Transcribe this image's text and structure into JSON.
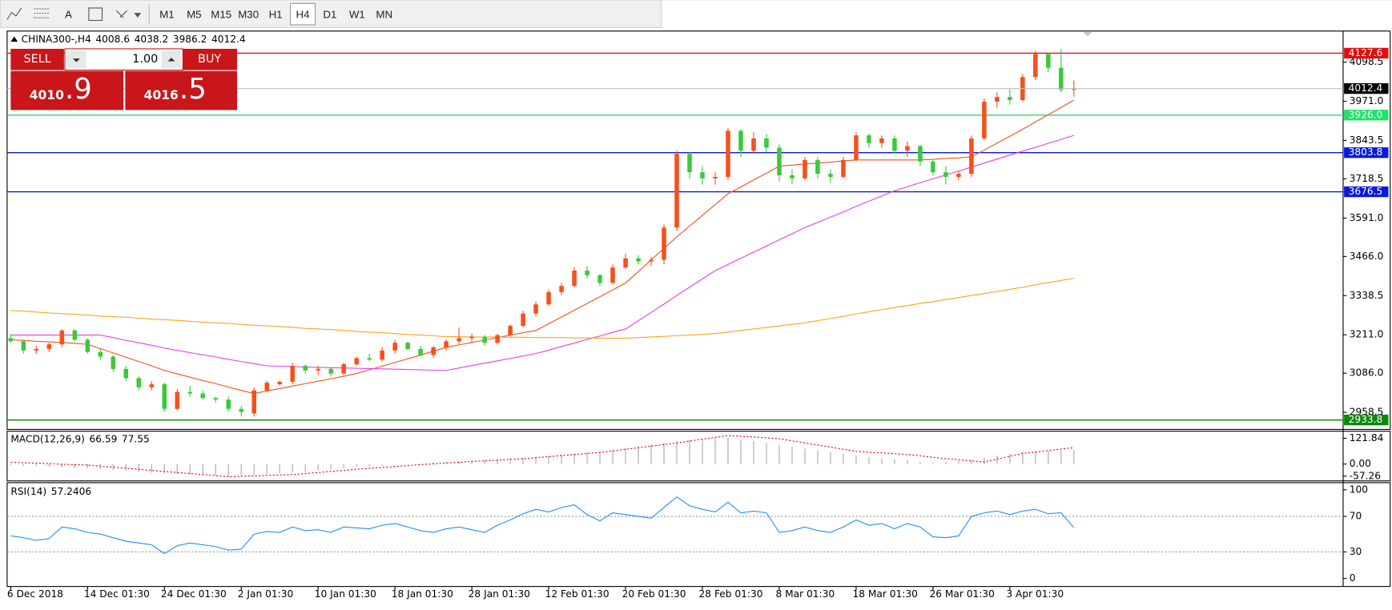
{
  "toolbar": {
    "text_tool": "A",
    "periods": [
      "M1",
      "M5",
      "M15",
      "M30",
      "H1",
      "H4",
      "D1",
      "W1",
      "MN"
    ],
    "active": 5
  },
  "trade_panel": {
    "sell": "SELL",
    "buy": "BUY",
    "volume": "1.00",
    "bid": [
      "4010",
      ".9"
    ],
    "ask": [
      "4016",
      ".5"
    ]
  },
  "chart_data": [
    {
      "type": "candlestick",
      "title": "CHINA300-,H4",
      "categories": [
        "6 Dec 2018",
        null,
        null,
        null,
        null,
        null,
        "14 Dec 01:30",
        null,
        null,
        null,
        null,
        null,
        "24 Dec 01:30",
        null,
        null,
        null,
        null,
        null,
        "2 Jan 01:30",
        null,
        null,
        null,
        null,
        null,
        "10 Jan 01:30",
        null,
        null,
        null,
        null,
        null,
        "18 Jan 01:30",
        null,
        null,
        null,
        null,
        null,
        "28 Jan 01:30",
        null,
        null,
        null,
        null,
        null,
        "12 Feb 01:30",
        null,
        null,
        null,
        null,
        null,
        "20 Feb 01:30",
        null,
        null,
        null,
        null,
        null,
        "28 Feb 01:30",
        null,
        null,
        null,
        null,
        null,
        "8 Mar 01:30",
        null,
        null,
        null,
        null,
        null,
        "18 Mar 01:30",
        null,
        null,
        null,
        null,
        null,
        "26 Mar 01:30",
        null,
        null,
        null,
        null,
        null,
        "3 Apr 01:30",
        null,
        null,
        null,
        null,
        null
      ],
      "open": [
        3200,
        3190,
        3160,
        3165,
        3180,
        3225,
        3195,
        3155,
        3140,
        3100,
        3070,
        3040,
        3050,
        2970,
        3025,
        3020,
        3005,
        3000,
        2970,
        2955,
        3030,
        3050,
        3058,
        3110,
        3095,
        3100,
        3085,
        3115,
        3135,
        3130,
        3160,
        3185,
        3165,
        3145,
        3170,
        3190,
        3200,
        3205,
        3185,
        3210,
        3240,
        3280,
        3310,
        3350,
        3370,
        3420,
        3405,
        3380,
        3430,
        3460,
        3450,
        3455,
        3560,
        3800,
        3740,
        3720,
        3725,
        3875,
        3810,
        3850,
        3820,
        3730,
        3720,
        3780,
        3735,
        3725,
        3780,
        3860,
        3835,
        3850,
        3810,
        3825,
        3775,
        3740,
        3725,
        3735,
        3850,
        3970,
        3985,
        3975,
        4050,
        4125,
        4080,
        4008.6
      ],
      "high": [
        3215,
        3195,
        3175,
        3185,
        3230,
        3230,
        3200,
        3165,
        3145,
        3110,
        3075,
        3060,
        3055,
        3035,
        3045,
        3030,
        3010,
        3010,
        2980,
        3040,
        3060,
        3062,
        3120,
        3115,
        3110,
        3105,
        3120,
        3140,
        3150,
        3170,
        3195,
        3190,
        3175,
        3175,
        3195,
        3235,
        3215,
        3210,
        3215,
        3245,
        3290,
        3320,
        3360,
        3380,
        3430,
        3435,
        3410,
        3440,
        3475,
        3470,
        3465,
        3570,
        3810,
        3805,
        3760,
        3740,
        3885,
        3880,
        3870,
        3865,
        3830,
        3750,
        3790,
        3790,
        3750,
        3790,
        3870,
        3865,
        3860,
        3860,
        3840,
        3830,
        3780,
        3760,
        3745,
        3860,
        3980,
        4000,
        4010,
        4060,
        4135,
        4130,
        4140,
        4038.2
      ],
      "low": [
        3185,
        3150,
        3150,
        3155,
        3170,
        3190,
        3150,
        3130,
        3090,
        3060,
        3030,
        3030,
        2960,
        2965,
        3010,
        3000,
        2990,
        2960,
        2945,
        2945,
        3025,
        3045,
        3050,
        3085,
        3080,
        3075,
        3080,
        3110,
        3125,
        3125,
        3150,
        3160,
        3140,
        3135,
        3160,
        3180,
        3185,
        3175,
        3180,
        3205,
        3235,
        3270,
        3305,
        3340,
        3365,
        3395,
        3370,
        3375,
        3425,
        3440,
        3435,
        3440,
        3550,
        3720,
        3700,
        3700,
        3715,
        3790,
        3800,
        3805,
        3710,
        3700,
        3715,
        3720,
        3705,
        3720,
        3775,
        3820,
        3820,
        3800,
        3790,
        3760,
        3730,
        3700,
        3715,
        3725,
        3845,
        3950,
        3960,
        3970,
        4040,
        4065,
        4000,
        3986.2
      ],
      "close": [
        3190,
        3160,
        3165,
        3180,
        3225,
        3195,
        3155,
        3140,
        3100,
        3070,
        3040,
        3050,
        2970,
        3025,
        3020,
        3005,
        3000,
        2970,
        2960,
        3030,
        3055,
        3058,
        3110,
        3095,
        3100,
        3085,
        3115,
        3135,
        3130,
        3160,
        3185,
        3165,
        3145,
        3170,
        3190,
        3200,
        3205,
        3185,
        3210,
        3240,
        3280,
        3310,
        3350,
        3370,
        3420,
        3405,
        3380,
        3430,
        3460,
        3450,
        3455,
        3560,
        3800,
        3740,
        3720,
        3725,
        3875,
        3810,
        3850,
        3820,
        3730,
        3720,
        3780,
        3735,
        3725,
        3780,
        3860,
        3835,
        3850,
        3810,
        3825,
        3775,
        3740,
        3725,
        3735,
        3850,
        3970,
        3985,
        3975,
        4050,
        4125,
        4080,
        4008,
        4012.4
      ],
      "up_color": "#f4511e",
      "down_color": "#3cc83c",
      "series": [
        {
          "color": "#f4511e",
          "values": [
            3195,
            3193,
            3190,
            3188,
            3186,
            3183,
            3180,
            3166,
            3152,
            3138,
            3124,
            3110,
            3095,
            3084,
            3073,
            3062,
            3052,
            3041,
            3030,
            3020,
            3028,
            3036,
            3044,
            3052,
            3060,
            3068,
            3076,
            3085,
            3097,
            3109,
            3121,
            3133,
            3145,
            3158,
            3170,
            3178,
            3186,
            3194,
            3202,
            3210,
            3218,
            3225,
            3247,
            3269,
            3291,
            3313,
            3335,
            3357,
            3380,
            3417,
            3455,
            3492,
            3530,
            3565,
            3600,
            3635,
            3670,
            3692,
            3715,
            3737,
            3760,
            3763,
            3767,
            3770,
            3773,
            3777,
            3780,
            3780,
            3780,
            3780,
            3780,
            3780,
            3782,
            3785,
            3787,
            3790,
            3812,
            3835,
            3857,
            3880,
            3904,
            3927,
            3951,
            3975
          ]
        },
        {
          "color": "#e83ee8",
          "values": [
            3210,
            3210,
            3210,
            3210,
            3210,
            3210,
            3210,
            3210,
            3202,
            3193,
            3185,
            3177,
            3168,
            3160,
            3153,
            3146,
            3139,
            3131,
            3124,
            3117,
            3110,
            3109,
            3108,
            3106,
            3105,
            3104,
            3103,
            3102,
            3101,
            3100,
            3099,
            3098,
            3097,
            3096,
            3095,
            3103,
            3111,
            3119,
            3126,
            3134,
            3142,
            3150,
            3161,
            3173,
            3184,
            3196,
            3207,
            3219,
            3230,
            3257,
            3284,
            3311,
            3339,
            3366,
            3393,
            3420,
            3440,
            3460,
            3480,
            3500,
            3520,
            3540,
            3560,
            3577,
            3594,
            3611,
            3629,
            3646,
            3663,
            3680,
            3693,
            3706,
            3719,
            3731,
            3744,
            3757,
            3770,
            3783,
            3796,
            3809,
            3821,
            3834,
            3847,
            3860
          ]
        },
        {
          "color": "#ffa21a",
          "values": [
            3290,
            3288,
            3285,
            3282,
            3280,
            3278,
            3275,
            3272,
            3270,
            3268,
            3265,
            3262,
            3260,
            3258,
            3255,
            3252,
            3250,
            3248,
            3245,
            3242,
            3240,
            3238,
            3235,
            3232,
            3230,
            3228,
            3225,
            3222,
            3220,
            3218,
            3215,
            3212,
            3210,
            3208,
            3205,
            3205,
            3204,
            3204,
            3204,
            3203,
            3203,
            3202,
            3202,
            3202,
            3201,
            3201,
            3200,
            3200,
            3200,
            3202,
            3204,
            3206,
            3208,
            3210,
            3212,
            3215,
            3220,
            3225,
            3230,
            3235,
            3240,
            3245,
            3250,
            3257,
            3264,
            3271,
            3279,
            3286,
            3293,
            3300,
            3306,
            3313,
            3319,
            3326,
            3332,
            3339,
            3345,
            3352,
            3359,
            3366,
            3374,
            3381,
            3388,
            3395
          ]
        }
      ],
      "levels": [
        {
          "value": 4127.6,
          "color": "#e01010"
        },
        {
          "value": 3926,
          "label": "3926.0",
          "color": "#22e06a"
        },
        {
          "value": 3803.8,
          "color": "#0a1adc"
        },
        {
          "value": 3676.5,
          "color": "#0a1adc"
        },
        {
          "value": 2933.8,
          "color": "#0a8a0a"
        }
      ],
      "current_color": "#000000",
      "ylim": [
        2905.9,
        4196.7
      ],
      "yticks": [
        4098.5,
        {
          "value": 3971,
          "label": "3971.0"
        },
        3843.5,
        3718.5,
        {
          "value": 3591,
          "label": "3591.0"
        },
        {
          "value": 3466,
          "label": "3466.0"
        },
        3338.5,
        {
          "value": 3211,
          "label": "3211.0"
        },
        {
          "value": 3086,
          "label": "3086.0"
        },
        2958.5
      ]
    },
    {
      "type": "macd",
      "title": "MACD(12,26,9)",
      "series": [
        {
          "type": "bar",
          "color": "#b4b4b4",
          "values": [
            -5,
            -8,
            -10,
            -12,
            -15,
            -18,
            -20,
            -24,
            -28,
            -32,
            -37,
            -41,
            -45,
            -48,
            -50,
            -53,
            -55,
            -58,
            -54,
            -51,
            -47,
            -44,
            -40,
            -35,
            -30,
            -25,
            -20,
            -15,
            -10,
            -7,
            -3,
            0,
            3,
            7,
            10,
            13,
            17,
            20,
            23,
            27,
            30,
            35,
            40,
            45,
            50,
            55,
            60,
            68,
            77,
            85,
            93,
            102,
            110,
            114,
            118,
            121,
            125,
            116,
            108,
            99,
            90,
            82,
            73,
            65,
            57,
            48,
            40,
            34,
            28,
            22,
            17,
            11,
            5,
            10,
            15,
            20,
            30,
            40,
            50,
            60,
            62,
            63,
            65,
            66.59
          ]
        },
        {
          "type": "line",
          "color": "#e01010",
          "dashed": true,
          "values": [
            8,
            6,
            4,
            2,
            -1,
            -3,
            -5,
            -10,
            -15,
            -20,
            -25,
            -30,
            -35,
            -40,
            -45,
            -50,
            -55,
            -60,
            -58,
            -56,
            -54,
            -52,
            -50,
            -45,
            -40,
            -35,
            -30,
            -25,
            -20,
            -16,
            -12,
            -7,
            -3,
            1,
            5,
            8,
            12,
            15,
            18,
            22,
            25,
            30,
            35,
            40,
            45,
            50,
            55,
            62,
            70,
            77,
            85,
            92,
            100,
            109,
            118,
            126,
            135,
            131,
            128,
            124,
            120,
            110,
            100,
            90,
            80,
            70,
            60,
            56,
            53,
            49,
            45,
            39,
            32,
            26,
            20,
            15,
            10,
            23,
            37,
            50,
            57,
            64,
            71,
            77.55
          ]
        }
      ],
      "ylim": [
        -75.62,
        151.25
      ],
      "yticks": [
        121.84,
        {
          "value": 0,
          "label": "0.00"
        },
        -57.26
      ]
    },
    {
      "type": "line",
      "title": "RSI(14)",
      "series": [
        {
          "color": "#1e90ff",
          "values": [
            48,
            46,
            43,
            45,
            58,
            56,
            52,
            50,
            46,
            42,
            40,
            38,
            28,
            37,
            40,
            38,
            36,
            32,
            33,
            50,
            53,
            52,
            58,
            54,
            55,
            52,
            58,
            57,
            56,
            60,
            62,
            58,
            54,
            52,
            56,
            58,
            55,
            52,
            60,
            66,
            73,
            78,
            75,
            80,
            83,
            72,
            65,
            74,
            72,
            70,
            68,
            80,
            92,
            82,
            78,
            75,
            86,
            74,
            76,
            74,
            52,
            54,
            58,
            54,
            52,
            58,
            66,
            60,
            62,
            56,
            62,
            58,
            47,
            46,
            48,
            70,
            74,
            76,
            72,
            76,
            78,
            73,
            74,
            57.2406
          ]
        }
      ],
      "levels": [
        70,
        30
      ],
      "ylim": [
        -8,
        107
      ],
      "yticks": [
        100,
        70,
        30,
        0
      ]
    }
  ]
}
